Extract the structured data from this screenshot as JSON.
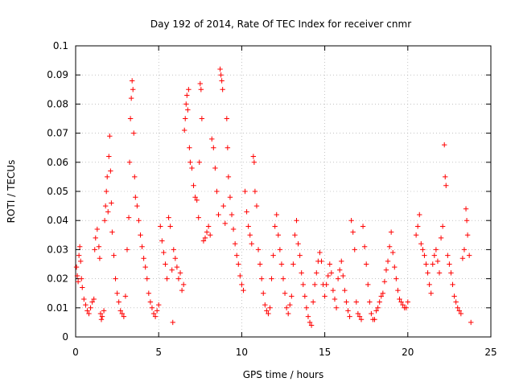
{
  "chart_data": {
    "type": "scatter",
    "title": "Day 192 of 2014, Rate Of TEC Index for receiver cnmr",
    "xlabel": "GPS time / hours",
    "ylabel": "ROTI / TECUs",
    "xlim": [
      0,
      25
    ],
    "ylim": [
      0,
      0.1
    ],
    "x_ticks": [
      "0",
      "5",
      "10",
      "15",
      "20",
      "25"
    ],
    "y_ticks": [
      "0",
      "0.01",
      "0.02",
      "0.03",
      "0.04",
      "0.05",
      "0.06",
      "0.07",
      "0.08",
      "0.09",
      "0.1"
    ],
    "grid": true,
    "marker": "+",
    "color": "#ff0000",
    "series": [
      {
        "name": "ROTI",
        "points": [
          [
            0.05,
            0.024
          ],
          [
            0.1,
            0.021
          ],
          [
            0.15,
            0.019
          ],
          [
            0.2,
            0.028
          ],
          [
            0.25,
            0.031
          ],
          [
            0.3,
            0.026
          ],
          [
            0.35,
            0.02
          ],
          [
            0.4,
            0.017
          ],
          [
            0.5,
            0.013
          ],
          [
            0.6,
            0.011
          ],
          [
            0.7,
            0.009
          ],
          [
            0.8,
            0.008
          ],
          [
            0.9,
            0.01
          ],
          [
            1.0,
            0.012
          ],
          [
            1.1,
            0.013
          ],
          [
            1.15,
            0.03
          ],
          [
            1.2,
            0.034
          ],
          [
            1.3,
            0.037
          ],
          [
            1.4,
            0.031
          ],
          [
            1.45,
            0.027
          ],
          [
            1.5,
            0.008
          ],
          [
            1.55,
            0.006
          ],
          [
            1.6,
            0.007
          ],
          [
            1.7,
            0.009
          ],
          [
            1.75,
            0.04
          ],
          [
            1.8,
            0.045
          ],
          [
            1.85,
            0.05
          ],
          [
            1.9,
            0.055
          ],
          [
            1.95,
            0.043
          ],
          [
            2.0,
            0.062
          ],
          [
            2.05,
            0.069
          ],
          [
            2.1,
            0.057
          ],
          [
            2.15,
            0.046
          ],
          [
            2.2,
            0.036
          ],
          [
            2.3,
            0.028
          ],
          [
            2.4,
            0.02
          ],
          [
            2.5,
            0.015
          ],
          [
            2.6,
            0.012
          ],
          [
            2.7,
            0.009
          ],
          [
            2.8,
            0.008
          ],
          [
            2.9,
            0.007
          ],
          [
            3.0,
            0.014
          ],
          [
            3.1,
            0.03
          ],
          [
            3.2,
            0.041
          ],
          [
            3.25,
            0.06
          ],
          [
            3.3,
            0.075
          ],
          [
            3.35,
            0.082
          ],
          [
            3.4,
            0.088
          ],
          [
            3.45,
            0.085
          ],
          [
            3.5,
            0.07
          ],
          [
            3.55,
            0.055
          ],
          [
            3.6,
            0.048
          ],
          [
            3.7,
            0.045
          ],
          [
            3.8,
            0.04
          ],
          [
            3.9,
            0.035
          ],
          [
            4.0,
            0.031
          ],
          [
            4.1,
            0.027
          ],
          [
            4.2,
            0.024
          ],
          [
            4.3,
            0.02
          ],
          [
            4.4,
            0.015
          ],
          [
            4.5,
            0.012
          ],
          [
            4.6,
            0.01
          ],
          [
            4.7,
            0.008
          ],
          [
            4.8,
            0.007
          ],
          [
            4.9,
            0.009
          ],
          [
            5.0,
            0.011
          ],
          [
            5.1,
            0.038
          ],
          [
            5.2,
            0.033
          ],
          [
            5.3,
            0.029
          ],
          [
            5.4,
            0.025
          ],
          [
            5.5,
            0.02
          ],
          [
            5.6,
            0.041
          ],
          [
            5.7,
            0.038
          ],
          [
            5.8,
            0.023
          ],
          [
            5.85,
            0.005
          ],
          [
            5.9,
            0.03
          ],
          [
            6.0,
            0.027
          ],
          [
            6.1,
            0.024
          ],
          [
            6.2,
            0.02
          ],
          [
            6.3,
            0.022
          ],
          [
            6.4,
            0.016
          ],
          [
            6.5,
            0.018
          ],
          [
            6.55,
            0.071
          ],
          [
            6.6,
            0.075
          ],
          [
            6.65,
            0.08
          ],
          [
            6.7,
            0.083
          ],
          [
            6.75,
            0.078
          ],
          [
            6.8,
            0.085
          ],
          [
            6.85,
            0.065
          ],
          [
            6.9,
            0.06
          ],
          [
            7.0,
            0.058
          ],
          [
            7.1,
            0.052
          ],
          [
            7.2,
            0.048
          ],
          [
            7.3,
            0.047
          ],
          [
            7.4,
            0.041
          ],
          [
            7.45,
            0.06
          ],
          [
            7.5,
            0.087
          ],
          [
            7.55,
            0.085
          ],
          [
            7.6,
            0.075
          ],
          [
            7.7,
            0.033
          ],
          [
            7.8,
            0.034
          ],
          [
            7.9,
            0.036
          ],
          [
            8.0,
            0.038
          ],
          [
            8.1,
            0.035
          ],
          [
            8.2,
            0.068
          ],
          [
            8.3,
            0.065
          ],
          [
            8.4,
            0.058
          ],
          [
            8.5,
            0.05
          ],
          [
            8.6,
            0.042
          ],
          [
            8.7,
            0.092
          ],
          [
            8.75,
            0.09
          ],
          [
            8.8,
            0.088
          ],
          [
            8.85,
            0.085
          ],
          [
            8.9,
            0.045
          ],
          [
            9.0,
            0.039
          ],
          [
            9.1,
            0.075
          ],
          [
            9.15,
            0.065
          ],
          [
            9.2,
            0.055
          ],
          [
            9.3,
            0.048
          ],
          [
            9.4,
            0.042
          ],
          [
            9.5,
            0.037
          ],
          [
            9.6,
            0.032
          ],
          [
            9.7,
            0.028
          ],
          [
            9.8,
            0.025
          ],
          [
            9.9,
            0.021
          ],
          [
            10.0,
            0.018
          ],
          [
            10.1,
            0.016
          ],
          [
            10.2,
            0.05
          ],
          [
            10.3,
            0.043
          ],
          [
            10.4,
            0.038
          ],
          [
            10.5,
            0.035
          ],
          [
            10.6,
            0.032
          ],
          [
            10.7,
            0.062
          ],
          [
            10.75,
            0.06
          ],
          [
            10.8,
            0.05
          ],
          [
            10.9,
            0.045
          ],
          [
            11.0,
            0.03
          ],
          [
            11.1,
            0.025
          ],
          [
            11.2,
            0.02
          ],
          [
            11.3,
            0.015
          ],
          [
            11.4,
            0.011
          ],
          [
            11.5,
            0.009
          ],
          [
            11.6,
            0.008
          ],
          [
            11.7,
            0.01
          ],
          [
            11.8,
            0.02
          ],
          [
            11.9,
            0.028
          ],
          [
            12.0,
            0.038
          ],
          [
            12.1,
            0.042
          ],
          [
            12.2,
            0.035
          ],
          [
            12.3,
            0.03
          ],
          [
            12.4,
            0.025
          ],
          [
            12.5,
            0.02
          ],
          [
            12.6,
            0.015
          ],
          [
            12.7,
            0.01
          ],
          [
            12.8,
            0.008
          ],
          [
            12.9,
            0.011
          ],
          [
            13.0,
            0.014
          ],
          [
            13.1,
            0.025
          ],
          [
            13.2,
            0.035
          ],
          [
            13.3,
            0.04
          ],
          [
            13.4,
            0.032
          ],
          [
            13.5,
            0.028
          ],
          [
            13.6,
            0.022
          ],
          [
            13.7,
            0.018
          ],
          [
            13.8,
            0.014
          ],
          [
            13.9,
            0.01
          ],
          [
            14.0,
            0.007
          ],
          [
            14.1,
            0.005
          ],
          [
            14.2,
            0.004
          ],
          [
            14.3,
            0.012
          ],
          [
            14.4,
            0.018
          ],
          [
            14.5,
            0.022
          ],
          [
            14.6,
            0.026
          ],
          [
            14.7,
            0.029
          ],
          [
            14.8,
            0.026
          ],
          [
            14.9,
            0.018
          ],
          [
            15.0,
            0.014
          ],
          [
            15.1,
            0.018
          ],
          [
            15.2,
            0.021
          ],
          [
            15.3,
            0.025
          ],
          [
            15.4,
            0.022
          ],
          [
            15.5,
            0.016
          ],
          [
            15.6,
            0.013
          ],
          [
            15.7,
            0.01
          ],
          [
            15.8,
            0.02
          ],
          [
            15.9,
            0.023
          ],
          [
            16.0,
            0.026
          ],
          [
            16.1,
            0.021
          ],
          [
            16.2,
            0.016
          ],
          [
            16.3,
            0.012
          ],
          [
            16.4,
            0.009
          ],
          [
            16.5,
            0.007
          ],
          [
            16.6,
            0.04
          ],
          [
            16.7,
            0.036
          ],
          [
            16.8,
            0.03
          ],
          [
            16.9,
            0.012
          ],
          [
            17.0,
            0.008
          ],
          [
            17.1,
            0.007
          ],
          [
            17.2,
            0.006
          ],
          [
            17.3,
            0.038
          ],
          [
            17.4,
            0.031
          ],
          [
            17.5,
            0.025
          ],
          [
            17.6,
            0.018
          ],
          [
            17.7,
            0.012
          ],
          [
            17.8,
            0.008
          ],
          [
            17.9,
            0.006
          ],
          [
            18.0,
            0.006
          ],
          [
            18.1,
            0.009
          ],
          [
            18.2,
            0.01
          ],
          [
            18.3,
            0.012
          ],
          [
            18.4,
            0.014
          ],
          [
            18.5,
            0.015
          ],
          [
            18.6,
            0.019
          ],
          [
            18.7,
            0.023
          ],
          [
            18.8,
            0.026
          ],
          [
            18.9,
            0.031
          ],
          [
            19.0,
            0.036
          ],
          [
            19.1,
            0.029
          ],
          [
            19.2,
            0.024
          ],
          [
            19.3,
            0.02
          ],
          [
            19.4,
            0.016
          ],
          [
            19.5,
            0.013
          ],
          [
            19.6,
            0.012
          ],
          [
            19.7,
            0.011
          ],
          [
            19.8,
            0.01
          ],
          [
            19.9,
            0.01
          ],
          [
            20.0,
            0.012
          ],
          [
            20.5,
            0.035
          ],
          [
            20.6,
            0.038
          ],
          [
            20.7,
            0.042
          ],
          [
            20.8,
            0.032
          ],
          [
            20.9,
            0.03
          ],
          [
            21.0,
            0.028
          ],
          [
            21.1,
            0.025
          ],
          [
            21.2,
            0.022
          ],
          [
            21.3,
            0.018
          ],
          [
            21.4,
            0.015
          ],
          [
            21.5,
            0.025
          ],
          [
            21.6,
            0.028
          ],
          [
            21.7,
            0.03
          ],
          [
            21.8,
            0.026
          ],
          [
            21.9,
            0.022
          ],
          [
            22.0,
            0.034
          ],
          [
            22.1,
            0.038
          ],
          [
            22.2,
            0.066
          ],
          [
            22.25,
            0.055
          ],
          [
            22.3,
            0.052
          ],
          [
            22.4,
            0.028
          ],
          [
            22.5,
            0.025
          ],
          [
            22.6,
            0.022
          ],
          [
            22.7,
            0.018
          ],
          [
            22.8,
            0.014
          ],
          [
            22.9,
            0.012
          ],
          [
            23.0,
            0.01
          ],
          [
            23.1,
            0.009
          ],
          [
            23.2,
            0.008
          ],
          [
            23.3,
            0.027
          ],
          [
            23.4,
            0.03
          ],
          [
            23.5,
            0.044
          ],
          [
            23.55,
            0.04
          ],
          [
            23.6,
            0.035
          ],
          [
            23.7,
            0.028
          ],
          [
            23.8,
            0.005
          ]
        ]
      }
    ]
  }
}
